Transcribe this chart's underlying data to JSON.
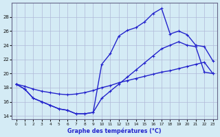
{
  "line1_x": [
    0,
    1,
    2,
    3,
    4,
    5,
    6,
    7,
    8,
    9,
    10,
    11,
    12,
    13,
    14,
    15,
    16,
    17,
    18,
    19,
    20,
    21,
    22,
    23
  ],
  "line1_y": [
    18.5,
    17.8,
    16.5,
    16.0,
    15.5,
    15.0,
    14.8,
    14.3,
    14.3,
    14.5,
    21.3,
    22.8,
    25.3,
    26.1,
    26.5,
    27.3,
    28.5,
    29.2,
    25.6,
    26.0,
    25.5,
    24.0,
    23.8,
    21.8
  ],
  "line2_x": [
    0,
    1,
    2,
    3,
    4,
    5,
    6,
    7,
    8,
    9,
    10,
    11,
    12,
    13,
    14,
    15,
    16,
    17,
    18,
    19,
    20,
    21,
    22,
    23
  ],
  "line2_y": [
    18.5,
    17.8,
    16.5,
    16.0,
    15.5,
    15.0,
    14.8,
    14.3,
    14.3,
    14.5,
    16.5,
    17.5,
    18.5,
    19.5,
    20.5,
    21.5,
    22.5,
    23.5,
    24.0,
    24.5,
    24.0,
    23.8,
    20.2,
    20.0
  ],
  "line3_x": [
    0,
    1,
    2,
    3,
    4,
    5,
    6,
    7,
    8,
    9,
    10,
    11,
    12,
    13,
    14,
    15,
    16,
    17,
    18,
    19,
    20,
    21,
    22,
    23
  ],
  "line3_y": [
    18.5,
    18.2,
    17.8,
    17.5,
    17.3,
    17.1,
    17.0,
    17.1,
    17.3,
    17.6,
    18.0,
    18.3,
    18.7,
    19.0,
    19.3,
    19.6,
    19.9,
    20.2,
    20.4,
    20.7,
    21.0,
    21.3,
    21.6,
    20.0
  ],
  "line_color": "#2222cc",
  "marker": "+",
  "marker_size": 3.5,
  "line_width": 1.0,
  "bg_color": "#d4ebf5",
  "grid_color": "#b0b8d8",
  "xlabel": "Graphe des températures (°C)",
  "xlim": [
    -0.5,
    23.5
  ],
  "ylim": [
    13.5,
    30.0
  ],
  "yticks": [
    14,
    16,
    18,
    20,
    22,
    24,
    26,
    28
  ],
  "xticks": [
    0,
    1,
    2,
    3,
    4,
    5,
    6,
    7,
    8,
    9,
    10,
    11,
    12,
    13,
    14,
    15,
    16,
    17,
    18,
    19,
    20,
    21,
    22,
    23
  ]
}
